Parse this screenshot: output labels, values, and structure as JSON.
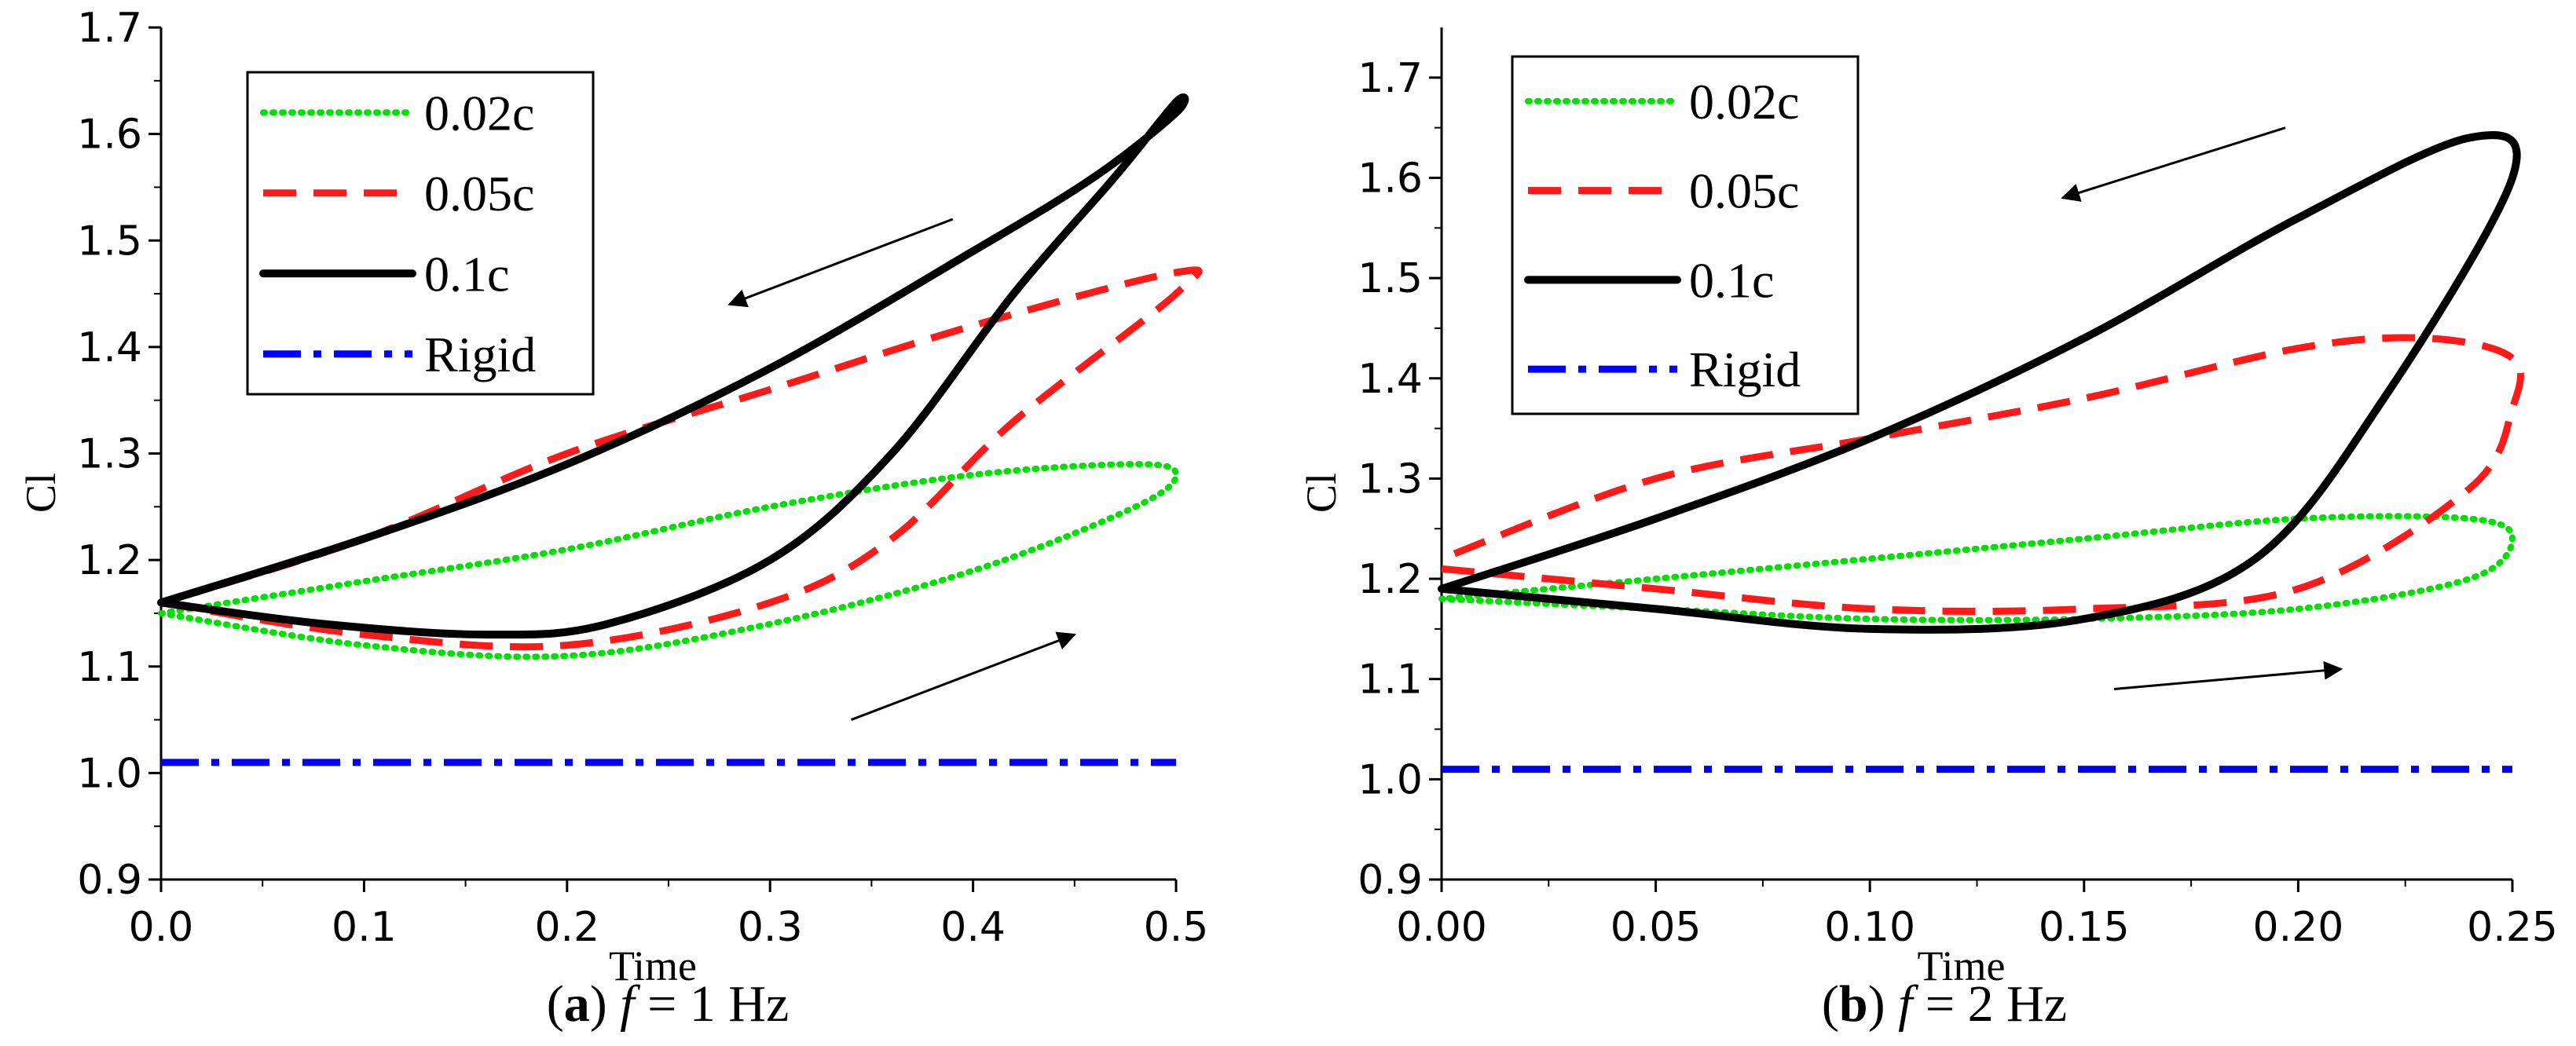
{
  "colors": {
    "d002": "#00e000",
    "d005": "#ff1a1a",
    "d01": "#000000",
    "rigid": "#0000ff"
  },
  "chart_data": [
    {
      "type": "line",
      "ylabel": "Cl",
      "xlabel": "Time",
      "xlim": [
        0.0,
        0.5
      ],
      "ylim": [
        0.9,
        1.7
      ],
      "xticks": [
        "0.0",
        "0.1",
        "0.2",
        "0.3",
        "0.4",
        "0.5"
      ],
      "yticks": [
        "0.9",
        "1.0",
        "1.1",
        "1.2",
        "1.3",
        "1.4",
        "1.5",
        "1.6",
        "1.7"
      ],
      "legend_position": "top-left",
      "caption": {
        "open": "(",
        "letter": "a",
        "close": ") ",
        "var": "f",
        "rest": " = 1 Hz"
      },
      "series": [
        {
          "name": "0.02c",
          "style": "dotted",
          "points": [
            [
              0.0,
              1.15
            ],
            [
              0.1,
              1.12
            ],
            [
              0.2,
              1.11
            ],
            [
              0.3,
              1.14
            ],
            [
              0.4,
              1.19
            ],
            [
              0.48,
              1.25
            ],
            [
              0.5,
              1.28
            ],
            [
              0.48,
              1.29
            ],
            [
              0.4,
              1.28
            ],
            [
              0.3,
              1.25
            ],
            [
              0.2,
              1.21
            ],
            [
              0.1,
              1.18
            ],
            [
              0.0,
              1.15
            ]
          ]
        },
        {
          "name": "0.05c",
          "style": "dashed",
          "points": [
            [
              0.0,
              1.16
            ],
            [
              0.1,
              1.13
            ],
            [
              0.2,
              1.12
            ],
            [
              0.3,
              1.16
            ],
            [
              0.36,
              1.22
            ],
            [
              0.42,
              1.33
            ],
            [
              0.5,
              1.45
            ],
            [
              0.5,
              1.47
            ],
            [
              0.4,
              1.42
            ],
            [
              0.3,
              1.36
            ],
            [
              0.2,
              1.3
            ],
            [
              0.1,
              1.22
            ],
            [
              0.0,
              1.16
            ]
          ]
        },
        {
          "name": "0.1c",
          "style": "solid",
          "points": [
            [
              0.0,
              1.16
            ],
            [
              0.08,
              1.14
            ],
            [
              0.16,
              1.13
            ],
            [
              0.22,
              1.14
            ],
            [
              0.3,
              1.2
            ],
            [
              0.36,
              1.3
            ],
            [
              0.42,
              1.45
            ],
            [
              0.47,
              1.56
            ],
            [
              0.5,
              1.63
            ],
            [
              0.5,
              1.62
            ],
            [
              0.46,
              1.56
            ],
            [
              0.4,
              1.49
            ],
            [
              0.3,
              1.38
            ],
            [
              0.2,
              1.29
            ],
            [
              0.1,
              1.22
            ],
            [
              0.0,
              1.16
            ]
          ]
        },
        {
          "name": "Rigid",
          "style": "dashdot",
          "points": [
            [
              0.0,
              1.01
            ],
            [
              0.5,
              1.01
            ]
          ]
        }
      ],
      "arrows": [
        {
          "from": [
            0.39,
            1.52
          ],
          "to": [
            0.28,
            1.44
          ]
        },
        {
          "from": [
            0.34,
            1.05
          ],
          "to": [
            0.45,
            1.13
          ]
        }
      ]
    },
    {
      "type": "line",
      "ylabel": "Cl",
      "xlabel": "Time",
      "xlim": [
        0.0,
        0.25
      ],
      "ylim": [
        0.9,
        1.75
      ],
      "xticks": [
        "0.00",
        "0.05",
        "0.10",
        "0.15",
        "0.20",
        "0.25"
      ],
      "yticks": [
        "0.9",
        "1.0",
        "1.1",
        "1.2",
        "1.3",
        "1.4",
        "1.5",
        "1.6",
        "1.7"
      ],
      "legend_position": "top-left",
      "caption": {
        "open": "(",
        "letter": "b",
        "close": ") ",
        "var": "f",
        "rest": " = 2 Hz"
      },
      "series": [
        {
          "name": "0.02c",
          "style": "dotted",
          "points": [
            [
              0.0,
              1.18
            ],
            [
              0.05,
              1.17
            ],
            [
              0.1,
              1.16
            ],
            [
              0.15,
              1.16
            ],
            [
              0.2,
              1.17
            ],
            [
              0.24,
              1.2
            ],
            [
              0.25,
              1.24
            ],
            [
              0.24,
              1.26
            ],
            [
              0.2,
              1.26
            ],
            [
              0.15,
              1.24
            ],
            [
              0.1,
              1.22
            ],
            [
              0.05,
              1.2
            ],
            [
              0.0,
              1.18
            ]
          ]
        },
        {
          "name": "0.05c",
          "style": "dashed",
          "points": [
            [
              0.0,
              1.21
            ],
            [
              0.05,
              1.19
            ],
            [
              0.1,
              1.17
            ],
            [
              0.15,
              1.17
            ],
            [
              0.2,
              1.19
            ],
            [
              0.24,
              1.29
            ],
            [
              0.25,
              1.37
            ],
            [
              0.25,
              1.42
            ],
            [
              0.23,
              1.44
            ],
            [
              0.2,
              1.43
            ],
            [
              0.15,
              1.38
            ],
            [
              0.1,
              1.34
            ],
            [
              0.05,
              1.3
            ],
            [
              0.0,
              1.22
            ]
          ]
        },
        {
          "name": "0.1c",
          "style": "solid",
          "points": [
            [
              0.0,
              1.19
            ],
            [
              0.05,
              1.17
            ],
            [
              0.1,
              1.15
            ],
            [
              0.15,
              1.16
            ],
            [
              0.19,
              1.22
            ],
            [
              0.22,
              1.38
            ],
            [
              0.25,
              1.6
            ],
            [
              0.24,
              1.64
            ],
            [
              0.2,
              1.56
            ],
            [
              0.15,
              1.44
            ],
            [
              0.1,
              1.34
            ],
            [
              0.05,
              1.26
            ],
            [
              0.0,
              1.19
            ]
          ]
        },
        {
          "name": "Rigid",
          "style": "dashdot",
          "points": [
            [
              0.0,
              1.01
            ],
            [
              0.25,
              1.01
            ]
          ]
        }
      ],
      "arrows": [
        {
          "from": [
            0.197,
            1.65
          ],
          "to": [
            0.145,
            1.58
          ]
        },
        {
          "from": [
            0.157,
            1.09
          ],
          "to": [
            0.21,
            1.11
          ]
        }
      ]
    }
  ]
}
